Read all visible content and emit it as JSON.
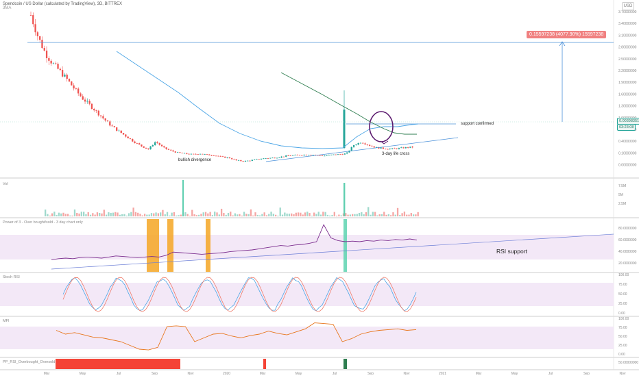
{
  "header": {
    "title": "Spendcoin / US Dollar (calculated by TradingView), 3D, BITTREX",
    "subtitle": "3MA"
  },
  "ui": {
    "currency_button": "USD"
  },
  "colors": {
    "bull": "#26a69a",
    "bear": "#ef5350",
    "ma_blue": "#4da6e6",
    "ma_green": "#2e7d4f",
    "fib_line": "#4a90d9",
    "rsi_line": "#7b2d8e",
    "stoch_blue": "#4da6e6",
    "stoch_red": "#ef7b6a",
    "mfi_orange": "#e8761c",
    "band_fill": "#f3e8f7",
    "orange_band": "#f5a623",
    "teal_band": "#5dd3b0",
    "osc_red": "#f44336",
    "osc_green": "#2e7d4f"
  },
  "price_axis": {
    "labels": [
      "3.70000000",
      "3.40000000",
      "3.10000000",
      "2.80000000",
      "2.50000000",
      "2.20000000",
      "1.90000000",
      "1.60000000",
      "1.30000000",
      "1.00000000",
      "0.70000000",
      "0.40000000",
      "0.10000000",
      "0.00000000"
    ]
  },
  "price_tags": {
    "current_price": "0.00398351",
    "countdown": "03:23:08",
    "measure": "0.15597238 (4077.90%) 15597238"
  },
  "annotations": {
    "bullish_divergence": "bullish divergence",
    "support_confirmed": "support confirmed",
    "life_cross": "3-day life cross",
    "rsi_support": "RSI support"
  },
  "panels": {
    "volume": {
      "label": "Vol",
      "axis": [
        "7.5M",
        "5M",
        "2.5M"
      ]
    },
    "rsi": {
      "label": "Power of 3 - Over bought/sold - 3 day chart only",
      "axis": [
        "80.0000000",
        "60.0000000",
        "40.0000000",
        "20.0000000"
      ]
    },
    "stoch": {
      "label": "Stoch RSI",
      "axis": [
        "100.00",
        "75.00",
        "50.00",
        "25.00",
        "0.00"
      ]
    },
    "mfi": {
      "label": "MFI",
      "axis": [
        "100.00",
        "75.00",
        "50.00",
        "25.00",
        "0.00"
      ]
    },
    "osc": {
      "label": "PP_RSI_Overbought_Oversold",
      "axis": [
        "50.00000000"
      ]
    }
  },
  "time_axis": [
    "Mar",
    "May",
    "Jul",
    "Sep",
    "Nov",
    "2020",
    "Mar",
    "May",
    "Jul",
    "Sep",
    "Nov",
    "2021",
    "Mar",
    "May",
    "Jul",
    "Sep",
    "Nov"
  ],
  "chart_data": {
    "type": "candlestick",
    "title": "Spendcoin / US Dollar (calculated by TradingView), 3D, BITTREX",
    "x_ticks": [
      "Mar",
      "May",
      "Jul",
      "Sep",
      "Nov",
      "2020",
      "Mar",
      "May",
      "Jul",
      "Sep",
      "Nov",
      "2021",
      "Mar",
      "May",
      "Jul",
      "Sep",
      "Nov"
    ],
    "price_path": [
      3.62,
      3.1,
      2.72,
      2.48,
      2.3,
      2.1,
      1.88,
      1.68,
      1.52,
      1.35,
      1.18,
      1.02,
      0.9,
      0.78,
      0.66,
      0.56,
      0.48,
      0.66,
      0.52,
      0.45,
      0.4,
      0.38,
      0.36,
      0.38,
      0.35,
      0.34,
      0.3,
      0.28,
      0.22,
      0.2,
      0.22,
      0.25,
      0.27,
      0.28,
      0.3,
      0.33,
      0.34,
      0.35,
      0.36,
      0.34,
      0.33,
      0.35,
      0.36,
      0.38,
      0.58,
      0.65,
      0.58,
      0.52,
      0.5,
      0.49,
      0.5,
      0.52,
      0.53
    ],
    "measure_value": "0.15597238 (4077.90%) 15597238",
    "current_price": "0.00398351",
    "rsi_path": [
      22,
      24,
      25,
      24,
      26,
      27,
      26,
      25,
      27,
      29,
      28,
      27,
      26,
      27,
      28,
      27,
      30,
      36,
      35,
      34,
      33,
      32,
      33,
      34,
      35,
      37,
      38,
      39,
      40,
      42,
      44,
      46,
      48,
      47,
      49,
      50,
      52,
      55,
      86,
      62,
      57,
      55,
      56,
      55,
      57,
      56,
      58,
      57,
      59,
      58,
      60,
      58
    ],
    "mfi_path": [
      70,
      60,
      64,
      58,
      52,
      50,
      45,
      40,
      30,
      20,
      18,
      25,
      80,
      82,
      80,
      40,
      50,
      60,
      62,
      55,
      50,
      56,
      60,
      68,
      62,
      58,
      66,
      74,
      90,
      88,
      86,
      40,
      48,
      60,
      66,
      70,
      72,
      74,
      70,
      72
    ]
  }
}
